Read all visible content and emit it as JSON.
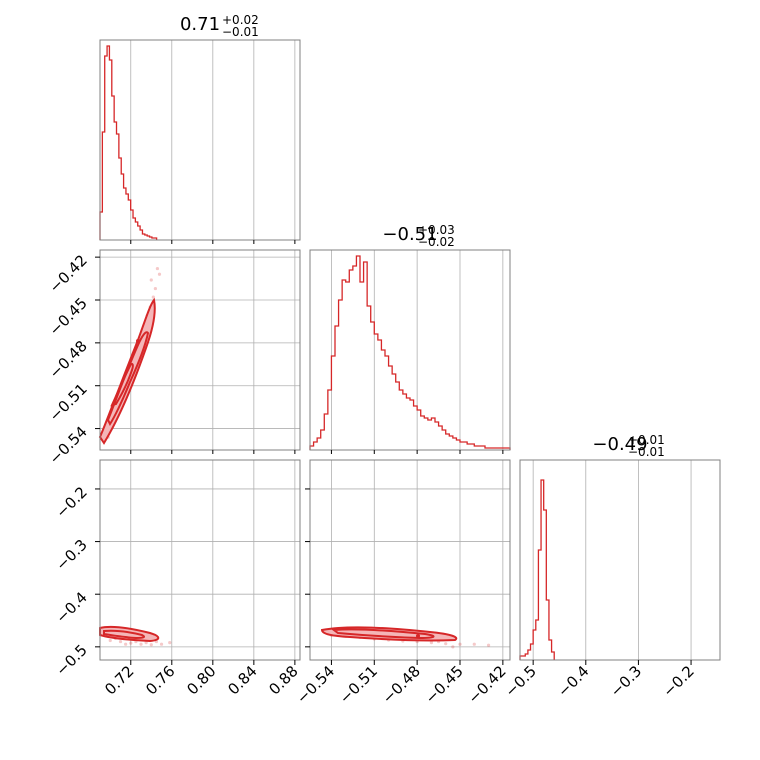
{
  "colors": {
    "series": "#d62728",
    "fill": "#f4b6b8",
    "grid": "#b0b0b0",
    "axes": "#808080"
  },
  "chart_data": {
    "type": "corner",
    "parameters": [
      {
        "title_value": "0.71",
        "title_plus": "+0.02",
        "title_minus": "−0.01",
        "range": [
          0.69,
          0.885
        ],
        "ticks": [
          0.72,
          0.76,
          0.8,
          0.84,
          0.88
        ],
        "tick_labels": [
          "0.72",
          "0.76",
          "0.80",
          "0.84",
          "0.88"
        ]
      },
      {
        "title_value": "−0.51",
        "title_plus": "+0.03",
        "title_minus": "−0.02",
        "range": [
          -0.555,
          -0.415
        ],
        "ticks": [
          -0.54,
          -0.51,
          -0.48,
          -0.45,
          -0.42
        ],
        "tick_labels": [
          "−0.54",
          "−0.51",
          "−0.48",
          "−0.45",
          "−0.42"
        ]
      },
      {
        "title_value": "−0.49",
        "title_plus": "+0.01",
        "title_minus": "−0.01",
        "range": [
          -0.525,
          -0.145
        ],
        "ticks": [
          -0.5,
          -0.4,
          -0.3,
          -0.2
        ],
        "tick_labels": [
          "−0.5",
          "−0.4",
          "−0.3",
          "−0.2"
        ]
      }
    ],
    "histograms": [
      {
        "param": 0,
        "bins": [
          0.69,
          0.6923,
          0.6946,
          0.6969,
          0.6992,
          0.7015,
          0.7038,
          0.7061,
          0.7084,
          0.7107,
          0.713,
          0.7153,
          0.7176,
          0.7199,
          0.7222,
          0.7245,
          0.7268,
          0.7291,
          0.7314,
          0.7337,
          0.736,
          0.7383,
          0.7406,
          0.7429,
          0.7452
        ],
        "counts": [
          0.14,
          0.54,
          0.92,
          0.97,
          0.9,
          0.72,
          0.59,
          0.53,
          0.41,
          0.33,
          0.26,
          0.23,
          0.2,
          0.15,
          0.11,
          0.09,
          0.07,
          0.05,
          0.03,
          0.025,
          0.02,
          0.015,
          0.01,
          0.01
        ]
      },
      {
        "param": 1,
        "bins": [
          -0.555,
          -0.5525,
          -0.55,
          -0.5475,
          -0.545,
          -0.5425,
          -0.54,
          -0.5375,
          -0.535,
          -0.5325,
          -0.53,
          -0.5275,
          -0.525,
          -0.5225,
          -0.52,
          -0.5175,
          -0.515,
          -0.5125,
          -0.51,
          -0.5075,
          -0.505,
          -0.5025,
          -0.5,
          -0.4975,
          -0.495,
          -0.4925,
          -0.49,
          -0.4875,
          -0.485,
          -0.4825,
          -0.48,
          -0.4775,
          -0.475,
          -0.4725,
          -0.47,
          -0.4675,
          -0.465,
          -0.4625,
          -0.46,
          -0.4575,
          -0.455,
          -0.4525,
          -0.45,
          -0.4475,
          -0.445,
          -0.4425,
          -0.44,
          -0.4375,
          -0.435,
          -0.4325,
          -0.43,
          -0.4275,
          -0.425,
          -0.4225,
          -0.42,
          -0.4175,
          -0.415
        ],
        "counts": [
          0.02,
          0.04,
          0.06,
          0.1,
          0.18,
          0.3,
          0.47,
          0.62,
          0.75,
          0.85,
          0.84,
          0.9,
          0.92,
          0.97,
          0.84,
          0.94,
          0.72,
          0.64,
          0.58,
          0.55,
          0.5,
          0.47,
          0.42,
          0.38,
          0.34,
          0.3,
          0.28,
          0.26,
          0.25,
          0.22,
          0.2,
          0.17,
          0.16,
          0.15,
          0.16,
          0.14,
          0.12,
          0.1,
          0.08,
          0.07,
          0.06,
          0.05,
          0.04,
          0.04,
          0.03,
          0.03,
          0.02,
          0.02,
          0.02,
          0.01,
          0.01,
          0.01,
          0.01,
          0.01,
          0.01,
          0.01
        ]
      },
      {
        "param": 2,
        "bins": [
          -0.525,
          -0.52,
          -0.515,
          -0.51,
          -0.505,
          -0.5,
          -0.495,
          -0.49,
          -0.485,
          -0.48,
          -0.475,
          -0.47,
          -0.465,
          -0.46
        ],
        "counts": [
          0.02,
          0.02,
          0.03,
          0.05,
          0.08,
          0.15,
          0.2,
          0.55,
          0.9,
          0.75,
          0.3,
          0.1,
          0.04
        ]
      }
    ],
    "pairs": [
      {
        "x": 0,
        "y": 1,
        "samples": [
          [
            0.695,
            -0.541
          ],
          [
            0.7,
            -0.535
          ],
          [
            0.706,
            -0.527
          ],
          [
            0.712,
            -0.515
          ],
          [
            0.718,
            -0.503
          ],
          [
            0.724,
            -0.489
          ],
          [
            0.73,
            -0.474
          ],
          [
            0.736,
            -0.461
          ],
          [
            0.742,
            -0.448
          ],
          [
            0.74,
            -0.436
          ],
          [
            0.746,
            -0.428
          ],
          [
            0.703,
            -0.53
          ],
          [
            0.709,
            -0.521
          ],
          [
            0.715,
            -0.51
          ],
          [
            0.721,
            -0.497
          ],
          [
            0.727,
            -0.482
          ],
          [
            0.733,
            -0.468
          ],
          [
            0.739,
            -0.455
          ],
          [
            0.698,
            -0.546
          ],
          [
            0.744,
            -0.442
          ],
          [
            0.748,
            -0.432
          ]
        ]
      },
      {
        "x": 0,
        "y": 2,
        "samples": [
          [
            0.7,
            -0.488
          ],
          [
            0.71,
            -0.49
          ],
          [
            0.72,
            -0.493
          ],
          [
            0.73,
            -0.495
          ],
          [
            0.74,
            -0.496
          ],
          [
            0.75,
            -0.495
          ],
          [
            0.705,
            -0.484
          ],
          [
            0.725,
            -0.49
          ],
          [
            0.735,
            -0.492
          ],
          [
            0.715,
            -0.495
          ],
          [
            0.745,
            -0.49
          ],
          [
            0.758,
            -0.492
          ]
        ]
      },
      {
        "x": 1,
        "y": 2,
        "samples": [
          [
            -0.54,
            -0.478
          ],
          [
            -0.53,
            -0.48
          ],
          [
            -0.52,
            -0.482
          ],
          [
            -0.51,
            -0.485
          ],
          [
            -0.5,
            -0.487
          ],
          [
            -0.49,
            -0.489
          ],
          [
            -0.48,
            -0.49
          ],
          [
            -0.47,
            -0.492
          ],
          [
            -0.46,
            -0.494
          ],
          [
            -0.45,
            -0.495
          ],
          [
            -0.44,
            -0.495
          ],
          [
            -0.43,
            -0.497
          ],
          [
            -0.525,
            -0.476
          ],
          [
            -0.495,
            -0.484
          ],
          [
            -0.465,
            -0.49
          ],
          [
            -0.455,
            -0.5
          ]
        ]
      }
    ]
  }
}
